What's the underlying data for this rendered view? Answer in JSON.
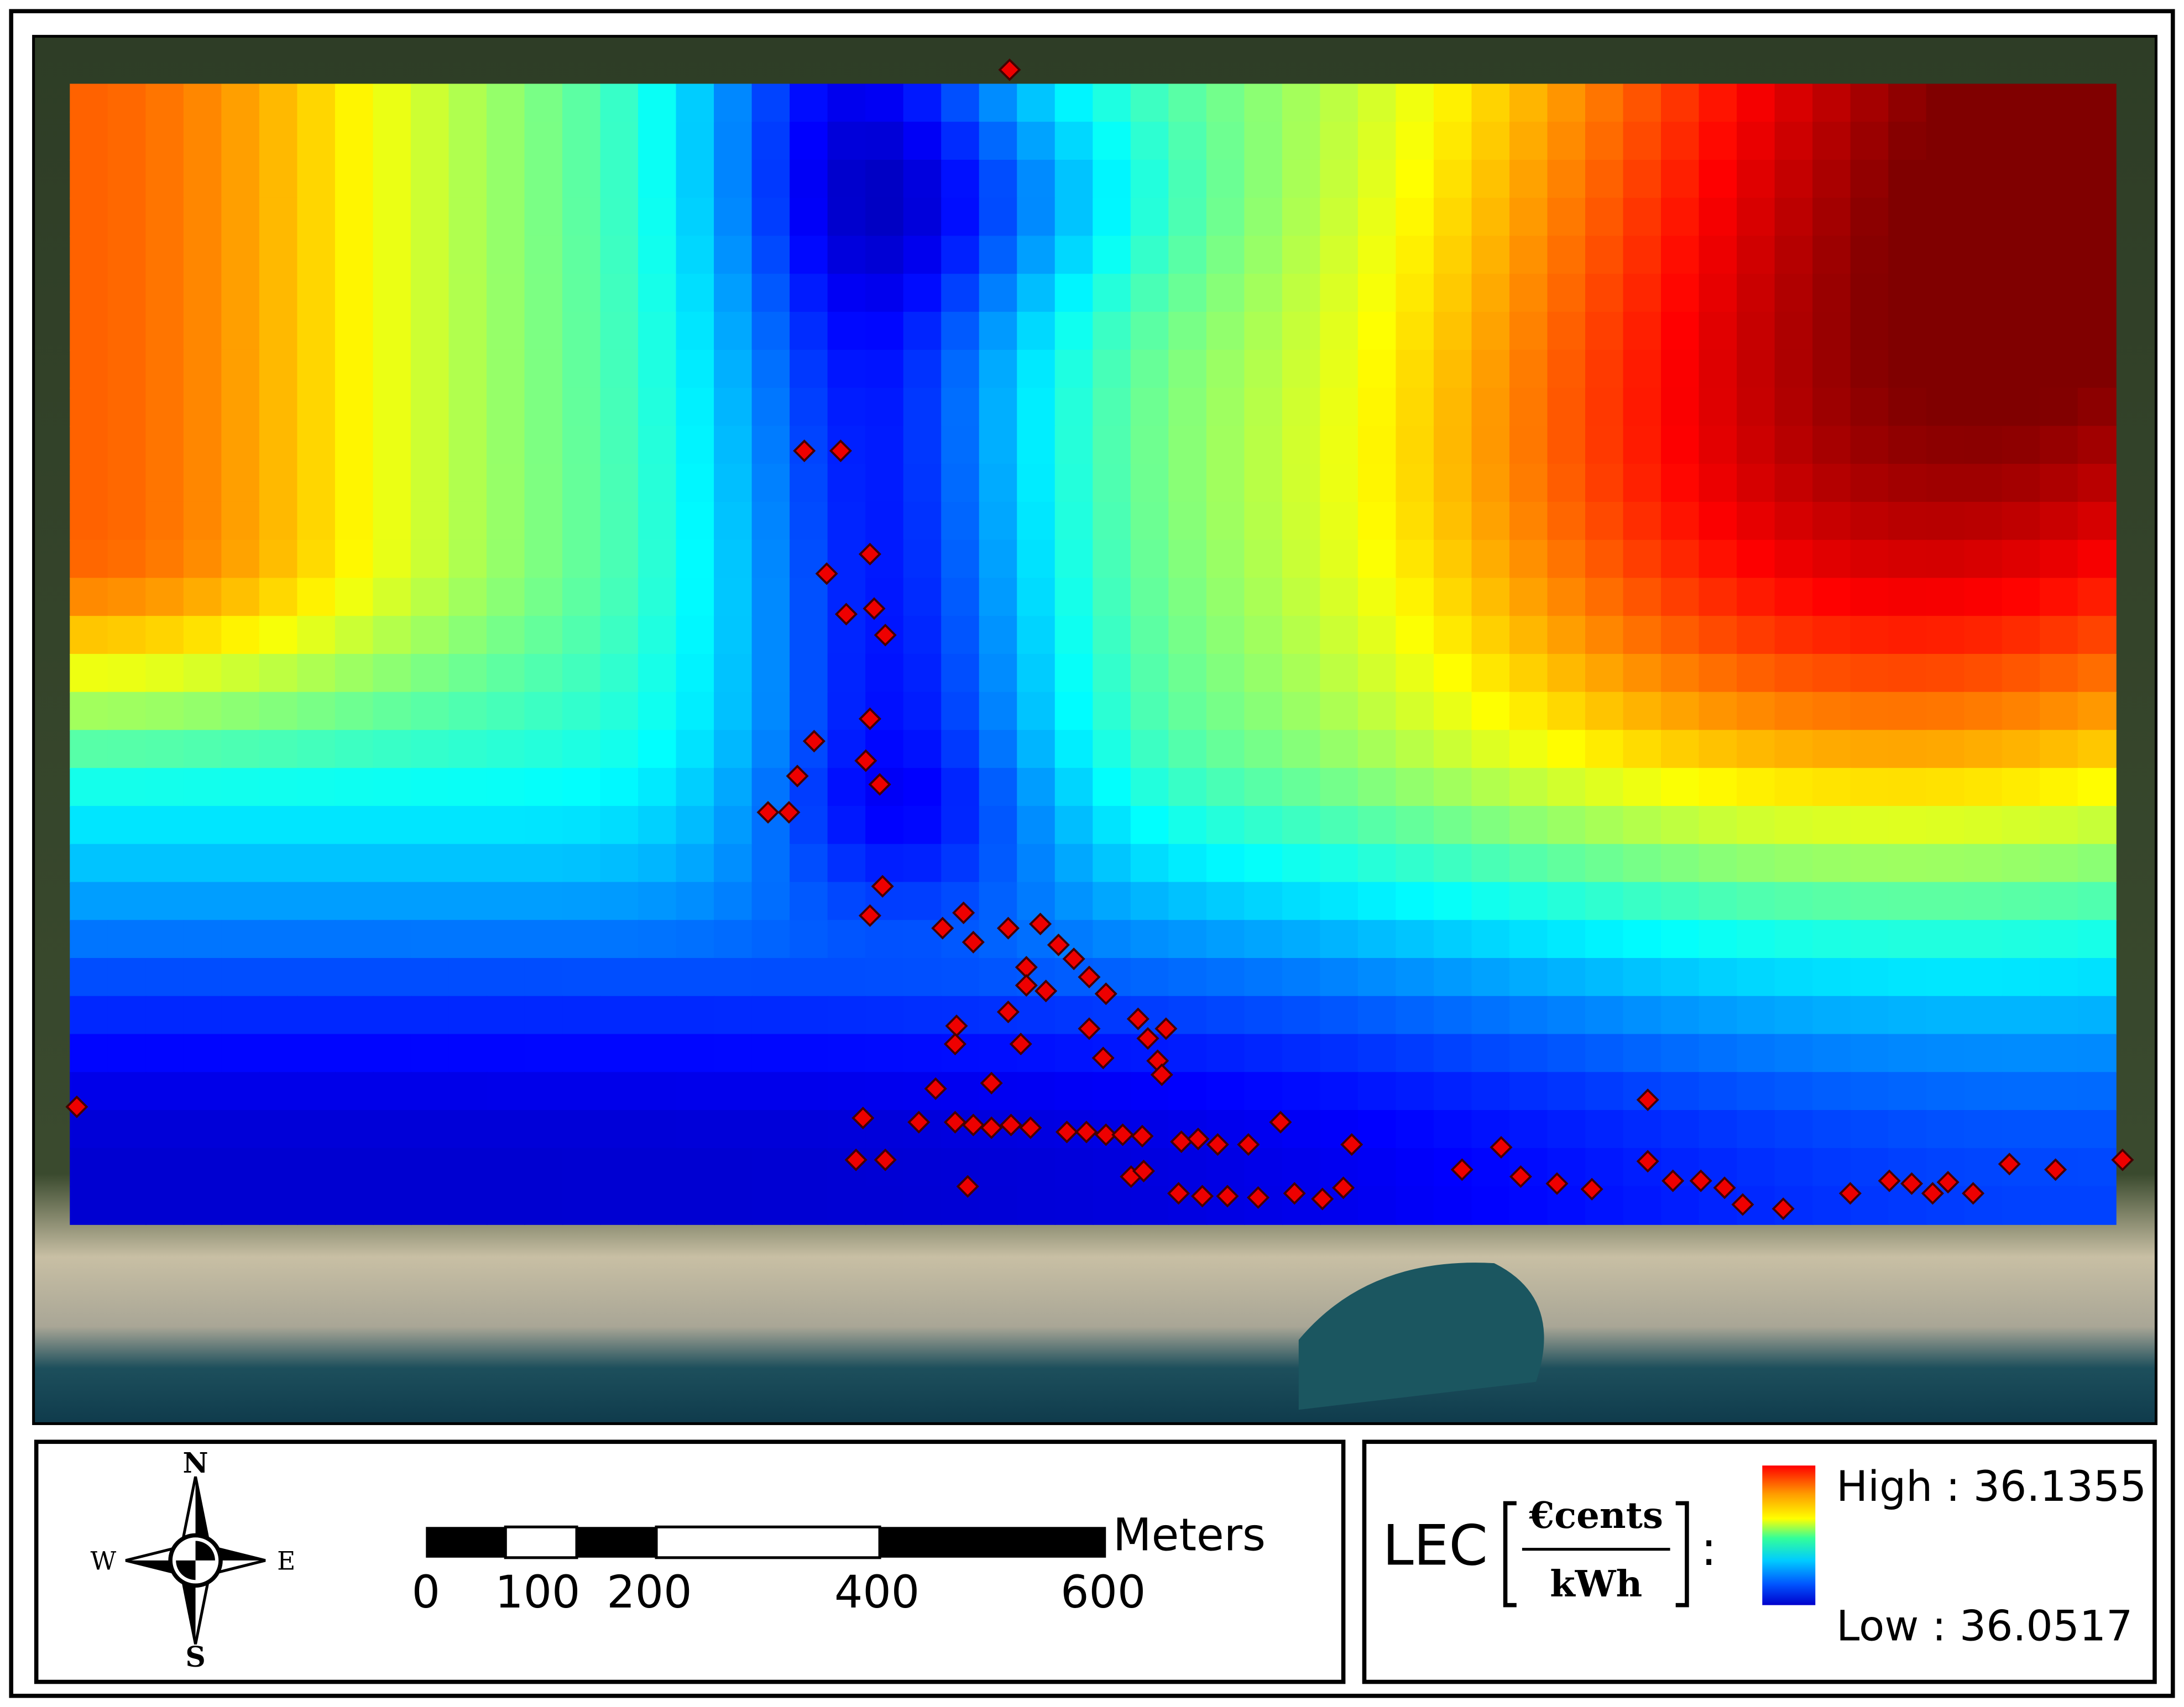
{
  "map": {
    "legend": {
      "title": "LEC",
      "unit_numerator": "€cents",
      "unit_denominator": "kWh",
      "separator": ":",
      "high": "High : 36.1355",
      "low": "Low : 36.0517"
    },
    "scale_bar": {
      "unit": "Meters",
      "ticks": [
        "0",
        "100",
        "200",
        "400",
        "600"
      ]
    },
    "compass": {
      "north": "N",
      "south": "S",
      "east": "E",
      "west": "W"
    }
  }
}
